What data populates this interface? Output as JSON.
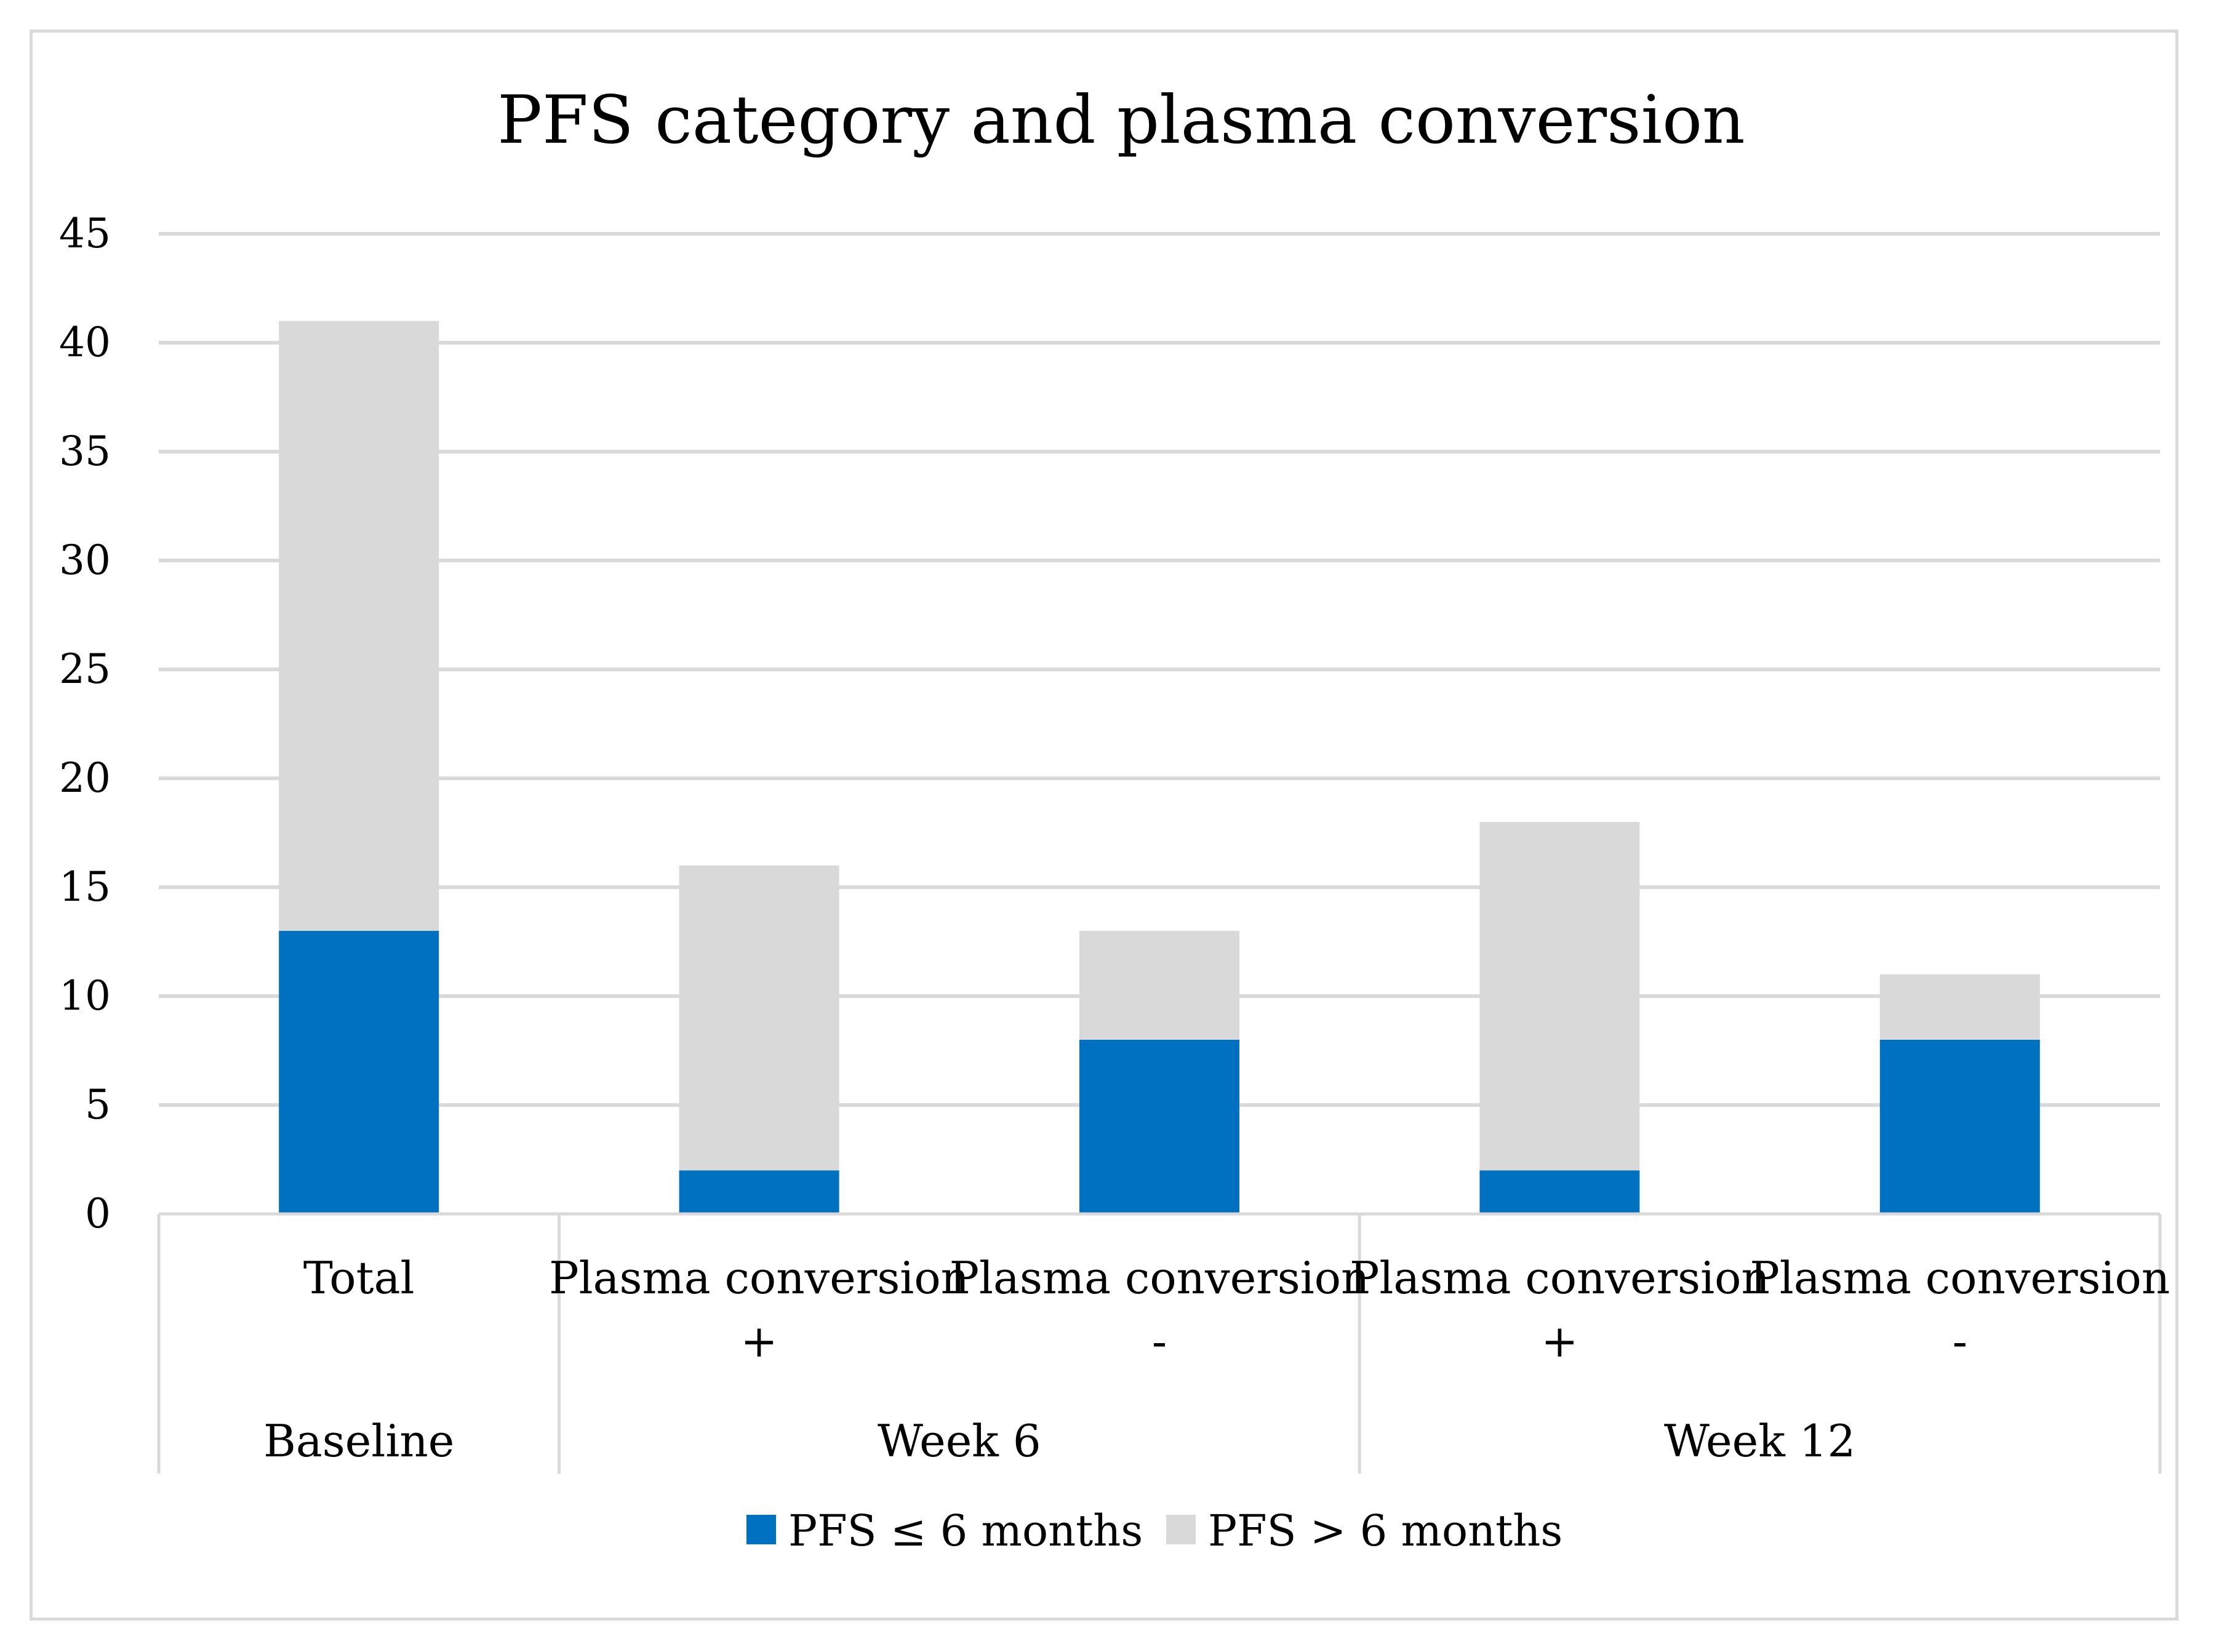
{
  "chart_data": {
    "type": "bar",
    "stacked": true,
    "title": "PFS category and plasma conversion",
    "ylim": [
      0,
      45
    ],
    "yticks": [
      0,
      5,
      10,
      15,
      20,
      25,
      30,
      35,
      40,
      45
    ],
    "categories": [
      {
        "label_line1": "Total",
        "label_line2": "",
        "group": "Baseline"
      },
      {
        "label_line1": "Plasma conversion",
        "label_line2": "+",
        "group": "Week 6"
      },
      {
        "label_line1": "Plasma conversion",
        "label_line2": "-",
        "group": "Week 6"
      },
      {
        "label_line1": "Plasma conversion",
        "label_line2": "+",
        "group": "Week 12"
      },
      {
        "label_line1": "Plasma conversion",
        "label_line2": "-",
        "group": "Week 12"
      }
    ],
    "groups": [
      "Baseline",
      "Week 6",
      "Week 12"
    ],
    "series": [
      {
        "name": "PFS ≤ 6 months",
        "color": "#0070c0",
        "values": [
          13,
          2,
          8,
          2,
          8
        ]
      },
      {
        "name": "PFS > 6 months",
        "color": "#d9d9d9",
        "values": [
          28,
          14,
          5,
          16,
          3
        ]
      }
    ],
    "grid": true,
    "legend": "bottom"
  }
}
